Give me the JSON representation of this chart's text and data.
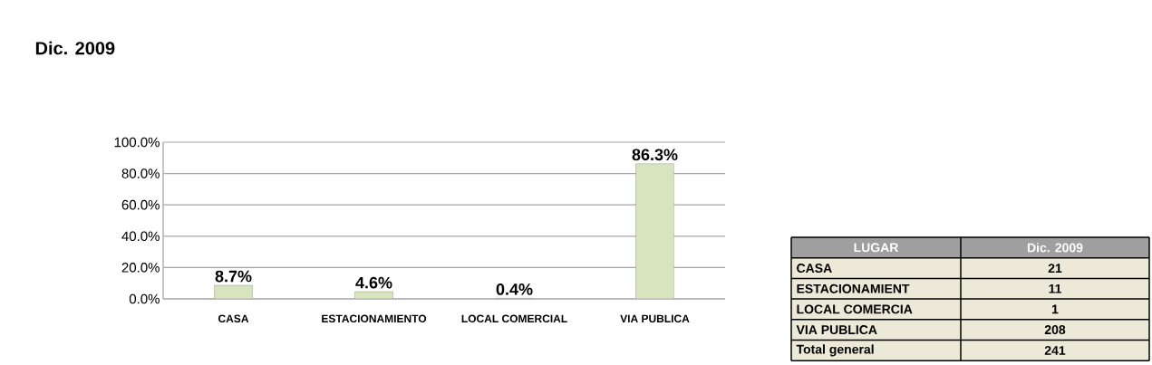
{
  "chart_data": [
    {
      "type": "bar",
      "title": "Dic. 2009",
      "categories": [
        "CASA",
        "ESTACIONAMIENTO",
        "LOCAL COMERCIAL",
        "VIA PUBLICA"
      ],
      "values": [
        8.7,
        4.6,
        0.4,
        86.3
      ],
      "value_labels": [
        "8.7%",
        "4.6%",
        "0.4%",
        "86.3%"
      ],
      "color": "#d7e4bd",
      "ylim": [
        0,
        100
      ],
      "yticks": [
        {
          "value": 0,
          "label": "0.0%"
        },
        {
          "value": 20,
          "label": "20.0%"
        },
        {
          "value": 40,
          "label": "40.0%"
        },
        {
          "value": 60,
          "label": "60.0%"
        },
        {
          "value": 80,
          "label": "80.0%"
        },
        {
          "value": 100,
          "label": "100.0%"
        }
      ],
      "grid": "y"
    },
    {
      "type": "other",
      "xlabel": "LUGAR",
      "ylabel": "Dic. 2009",
      "categories": [
        "CASA",
        "ESTACIONAMIENT",
        "LOCAL COMERCIA",
        "VIA PUBLICA",
        "Total general"
      ],
      "values": [
        21,
        11,
        1,
        208,
        241
      ],
      "data_labels": true
    }
  ]
}
